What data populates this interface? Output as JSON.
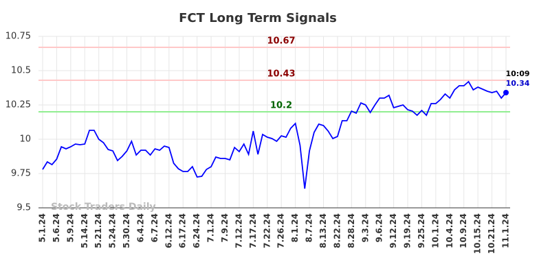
{
  "chart_data": {
    "type": "line",
    "title": "FCT Long Term Signals",
    "categories": [
      "5.1.24",
      null,
      null,
      "5.6.24",
      null,
      null,
      "5.9.24",
      null,
      null,
      "5.14.24",
      null,
      null,
      "5.21.24",
      null,
      null,
      "5.24.24",
      null,
      null,
      "5.30.24",
      null,
      null,
      "6.4.24",
      null,
      null,
      "6.7.24",
      null,
      null,
      "6.12.24",
      null,
      null,
      "6.17.24",
      null,
      null,
      "6.24.24",
      null,
      null,
      "7.1.24",
      null,
      null,
      "7.9.24",
      null,
      null,
      "7.12.24",
      null,
      null,
      "7.17.24",
      null,
      null,
      "7.22.24",
      null,
      null,
      "7.26.24",
      null,
      null,
      "8.1.24",
      null,
      null,
      "8.7.24",
      null,
      null,
      "8.13.24",
      null,
      null,
      "8.22.24",
      null,
      null,
      "8.28.24",
      null,
      null,
      "9.3.24",
      null,
      null,
      "9.6.24",
      null,
      null,
      "9.12.24",
      null,
      null,
      "9.19.24",
      null,
      null,
      "9.25.24",
      null,
      null,
      "10.1.24",
      null,
      null,
      "10.4.24",
      null,
      null,
      "10.9.24",
      null,
      null,
      "10.15.24",
      null,
      null,
      "10.21.24",
      null,
      null,
      "11.1.24"
    ],
    "values": [
      9.78,
      9.835,
      9.815,
      9.855,
      9.945,
      9.93,
      9.945,
      9.965,
      9.96,
      9.965,
      10.065,
      10.065,
      10.0,
      9.975,
      9.925,
      9.915,
      9.845,
      9.875,
      9.915,
      9.985,
      9.885,
      9.92,
      9.92,
      9.885,
      9.93,
      9.92,
      9.95,
      9.94,
      9.825,
      9.785,
      9.765,
      9.765,
      9.8,
      9.725,
      9.73,
      9.78,
      9.8,
      9.87,
      9.86,
      9.86,
      9.85,
      9.94,
      9.91,
      9.965,
      9.89,
      10.06,
      9.89,
      10.035,
      10.015,
      10.005,
      9.985,
      10.025,
      10.015,
      10.08,
      10.115,
      9.955,
      9.64,
      9.915,
      10.05,
      10.11,
      10.1,
      10.06,
      10.005,
      10.02,
      10.135,
      10.135,
      10.205,
      10.19,
      10.265,
      10.25,
      10.195,
      10.25,
      10.3,
      10.3,
      10.32,
      10.23,
      10.24,
      10.25,
      10.215,
      10.205,
      10.175,
      10.21,
      10.175,
      10.26,
      10.26,
      10.29,
      10.33,
      10.3,
      10.36,
      10.39,
      10.39,
      10.42,
      10.36,
      10.38,
      10.365,
      10.35,
      10.34,
      10.35,
      10.3,
      10.34
    ],
    "color": "#0000ff",
    "ylim": [
      9.5,
      10.75
    ],
    "yticks": [
      9.5,
      9.75,
      10,
      10.25,
      10.5,
      10.75
    ],
    "grid": true,
    "reference_lines": [
      {
        "value": 10.67,
        "color": "#ffc8c8",
        "label_color": "#8b0000"
      },
      {
        "value": 10.43,
        "color": "#ffc8c8",
        "label_color": "#8b0000"
      },
      {
        "value": 10.2,
        "color": "#90ee90",
        "label_color": "#006400"
      }
    ],
    "last_time": "10:09",
    "watermark": "Stock Traders Daily"
  }
}
